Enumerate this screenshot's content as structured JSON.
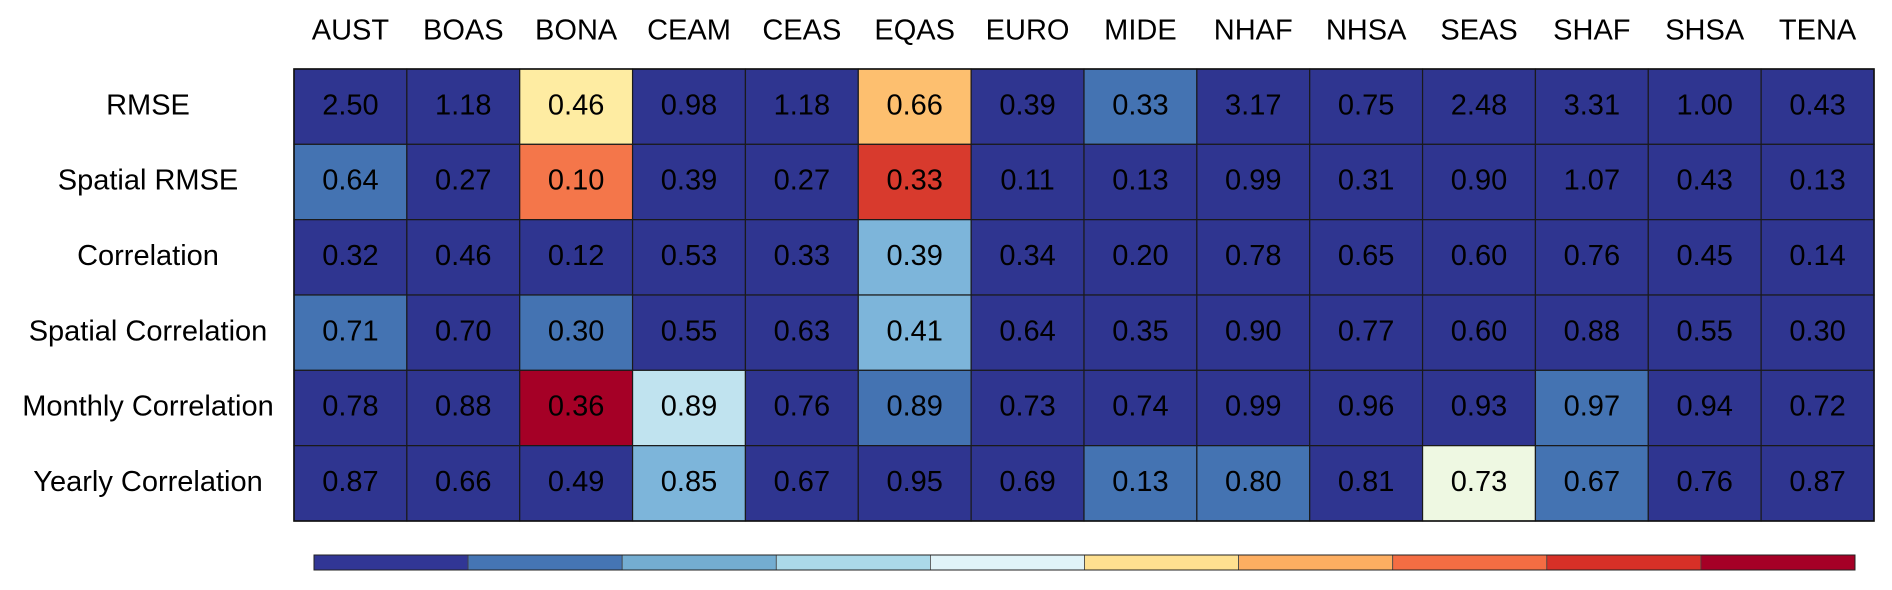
{
  "chart_data": {
    "type": "heatmap",
    "columns": [
      "AUST",
      "BOAS",
      "BONA",
      "CEAM",
      "CEAS",
      "EQAS",
      "EURO",
      "MIDE",
      "NHAF",
      "NHSA",
      "SEAS",
      "SHAF",
      "SHSA",
      "TENA"
    ],
    "rows": [
      "RMSE",
      "Spatial RMSE",
      "Correlation",
      "Spatial Correlation",
      "Monthly Correlation",
      "Yearly Correlation"
    ],
    "values": [
      [
        "2.50",
        "1.18",
        "0.46",
        "0.98",
        "1.18",
        "0.66",
        "0.39",
        "0.33",
        "3.17",
        "0.75",
        "2.48",
        "3.31",
        "1.00",
        "0.43"
      ],
      [
        "0.64",
        "0.27",
        "0.10",
        "0.39",
        "0.27",
        "0.33",
        "0.11",
        "0.13",
        "0.99",
        "0.31",
        "0.90",
        "1.07",
        "0.43",
        "0.13"
      ],
      [
        "0.32",
        "0.46",
        "0.12",
        "0.53",
        "0.33",
        "0.39",
        "0.34",
        "0.20",
        "0.78",
        "0.65",
        "0.60",
        "0.76",
        "0.45",
        "0.14"
      ],
      [
        "0.71",
        "0.70",
        "0.30",
        "0.55",
        "0.63",
        "0.41",
        "0.64",
        "0.35",
        "0.90",
        "0.77",
        "0.60",
        "0.88",
        "0.55",
        "0.30"
      ],
      [
        "0.78",
        "0.88",
        "0.36",
        "0.89",
        "0.76",
        "0.89",
        "0.73",
        "0.74",
        "0.99",
        "0.96",
        "0.93",
        "0.97",
        "0.94",
        "0.72"
      ],
      [
        "0.87",
        "0.66",
        "0.49",
        "0.85",
        "0.67",
        "0.95",
        "0.69",
        "0.13",
        "0.80",
        "0.81",
        "0.73",
        "0.67",
        "0.76",
        "0.87"
      ]
    ],
    "color_levels": [
      [
        0,
        0,
        5,
        0,
        0,
        6,
        0,
        1,
        0,
        0,
        0,
        0,
        0,
        0
      ],
      [
        1,
        0,
        7,
        0,
        0,
        8,
        0,
        0,
        0,
        0,
        0,
        0,
        0,
        0
      ],
      [
        0,
        0,
        0,
        0,
        0,
        2,
        0,
        0,
        0,
        0,
        0,
        0,
        0,
        0
      ],
      [
        1,
        0,
        1,
        0,
        0,
        2,
        0,
        0,
        0,
        0,
        0,
        0,
        0,
        0
      ],
      [
        0,
        0,
        9,
        3,
        0,
        1,
        0,
        0,
        0,
        0,
        0,
        1,
        0,
        0
      ],
      [
        0,
        0,
        0,
        2,
        0,
        0,
        0,
        1,
        1,
        0,
        4,
        1,
        0,
        0
      ]
    ],
    "colorbar": [
      "#313695",
      "#4575b4",
      "#74add1",
      "#abd9e9",
      "#e0f3f8",
      "#fee090",
      "#fdae61",
      "#f46d43",
      "#d73027",
      "#a50026"
    ],
    "cell_colors": [
      "#2f3590",
      "#4473b2",
      "#7db5da",
      "#c0e3ef",
      "#eef8e2",
      "#feeca2",
      "#fdbf6f",
      "#f4764a",
      "#d83a2d",
      "#a50026"
    ],
    "grid": true,
    "legend": "colorbar-bottom"
  }
}
